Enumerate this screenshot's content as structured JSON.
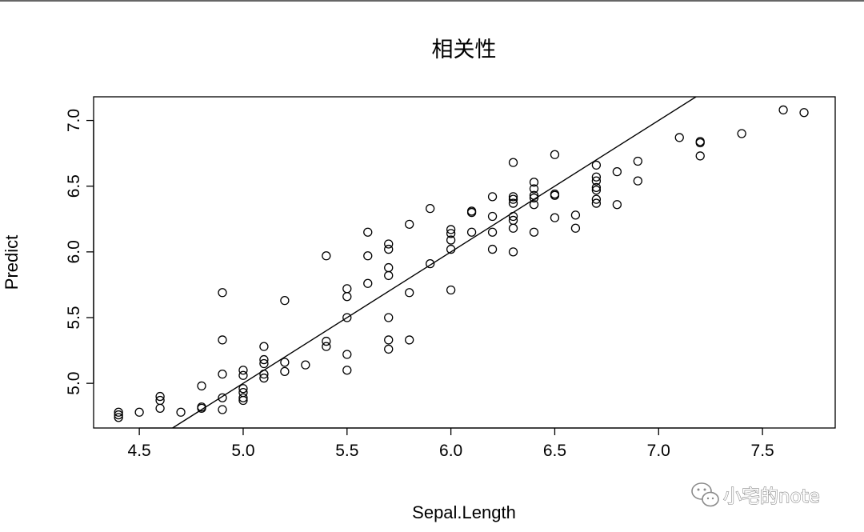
{
  "chart_data": {
    "type": "scatter",
    "title": "相关性",
    "xlabel": "Sepal.Length",
    "ylabel": "Predict",
    "xlim": [
      4.28,
      7.85
    ],
    "ylim": [
      4.66,
      7.18
    ],
    "xticks": [
      4.5,
      5.0,
      5.5,
      6.0,
      6.5,
      7.0,
      7.5
    ],
    "yticks": [
      5.0,
      5.5,
      6.0,
      6.5,
      7.0
    ],
    "xtick_labels": [
      "4.5",
      "5.0",
      "5.5",
      "6.0",
      "6.5",
      "7.0",
      "7.5"
    ],
    "ytick_labels": [
      "5.0",
      "5.5",
      "6.0",
      "6.5",
      "7.0"
    ],
    "grid": false,
    "fit_line": {
      "slope": 1,
      "intercept": 0
    },
    "points": [
      [
        4.4,
        4.74
      ],
      [
        4.4,
        4.76
      ],
      [
        4.4,
        4.78
      ],
      [
        4.5,
        4.78
      ],
      [
        4.6,
        4.81
      ],
      [
        4.6,
        4.87
      ],
      [
        4.6,
        4.9
      ],
      [
        4.7,
        4.78
      ],
      [
        4.8,
        4.81
      ],
      [
        4.8,
        4.82
      ],
      [
        4.8,
        4.98
      ],
      [
        4.9,
        4.8
      ],
      [
        4.9,
        4.89
      ],
      [
        4.9,
        5.07
      ],
      [
        4.9,
        5.33
      ],
      [
        4.9,
        5.69
      ],
      [
        5.0,
        4.87
      ],
      [
        5.0,
        4.89
      ],
      [
        5.0,
        4.93
      ],
      [
        5.0,
        4.96
      ],
      [
        5.0,
        5.06
      ],
      [
        5.0,
        5.1
      ],
      [
        5.1,
        5.04
      ],
      [
        5.1,
        5.07
      ],
      [
        5.1,
        5.15
      ],
      [
        5.1,
        5.18
      ],
      [
        5.1,
        5.28
      ],
      [
        5.2,
        5.09
      ],
      [
        5.2,
        5.16
      ],
      [
        5.2,
        5.63
      ],
      [
        5.3,
        5.14
      ],
      [
        5.4,
        5.28
      ],
      [
        5.4,
        5.32
      ],
      [
        5.4,
        5.97
      ],
      [
        5.5,
        5.1
      ],
      [
        5.5,
        5.22
      ],
      [
        5.5,
        5.5
      ],
      [
        5.5,
        5.66
      ],
      [
        5.5,
        5.72
      ],
      [
        5.6,
        5.76
      ],
      [
        5.6,
        5.97
      ],
      [
        5.6,
        6.15
      ],
      [
        5.7,
        5.26
      ],
      [
        5.7,
        5.33
      ],
      [
        5.7,
        5.5
      ],
      [
        5.7,
        5.82
      ],
      [
        5.7,
        5.88
      ],
      [
        5.7,
        6.02
      ],
      [
        5.7,
        6.06
      ],
      [
        5.8,
        5.33
      ],
      [
        5.8,
        5.69
      ],
      [
        5.8,
        6.21
      ],
      [
        5.9,
        5.91
      ],
      [
        5.9,
        6.33
      ],
      [
        6.0,
        5.71
      ],
      [
        6.0,
        6.02
      ],
      [
        6.0,
        6.09
      ],
      [
        6.0,
        6.14
      ],
      [
        6.0,
        6.17
      ],
      [
        6.1,
        6.15
      ],
      [
        6.1,
        6.3
      ],
      [
        6.1,
        6.31
      ],
      [
        6.2,
        6.02
      ],
      [
        6.2,
        6.15
      ],
      [
        6.2,
        6.27
      ],
      [
        6.2,
        6.42
      ],
      [
        6.3,
        6.0
      ],
      [
        6.3,
        6.18
      ],
      [
        6.3,
        6.24
      ],
      [
        6.3,
        6.27
      ],
      [
        6.3,
        6.37
      ],
      [
        6.3,
        6.4
      ],
      [
        6.3,
        6.42
      ],
      [
        6.3,
        6.68
      ],
      [
        6.4,
        6.15
      ],
      [
        6.4,
        6.36
      ],
      [
        6.4,
        6.41
      ],
      [
        6.4,
        6.43
      ],
      [
        6.4,
        6.48
      ],
      [
        6.4,
        6.53
      ],
      [
        6.5,
        6.26
      ],
      [
        6.5,
        6.43
      ],
      [
        6.5,
        6.44
      ],
      [
        6.5,
        6.74
      ],
      [
        6.6,
        6.18
      ],
      [
        6.6,
        6.28
      ],
      [
        6.7,
        6.37
      ],
      [
        6.7,
        6.4
      ],
      [
        6.7,
        6.47
      ],
      [
        6.7,
        6.49
      ],
      [
        6.7,
        6.54
      ],
      [
        6.7,
        6.57
      ],
      [
        6.7,
        6.66
      ],
      [
        6.8,
        6.36
      ],
      [
        6.8,
        6.61
      ],
      [
        6.9,
        6.54
      ],
      [
        6.9,
        6.69
      ],
      [
        7.1,
        6.87
      ],
      [
        7.2,
        6.73
      ],
      [
        7.2,
        6.83
      ],
      [
        7.2,
        6.84
      ],
      [
        7.4,
        6.9
      ],
      [
        7.6,
        7.08
      ],
      [
        7.7,
        7.06
      ]
    ]
  },
  "watermark": {
    "icon": "wechat-icon",
    "text": "小宅的note"
  }
}
